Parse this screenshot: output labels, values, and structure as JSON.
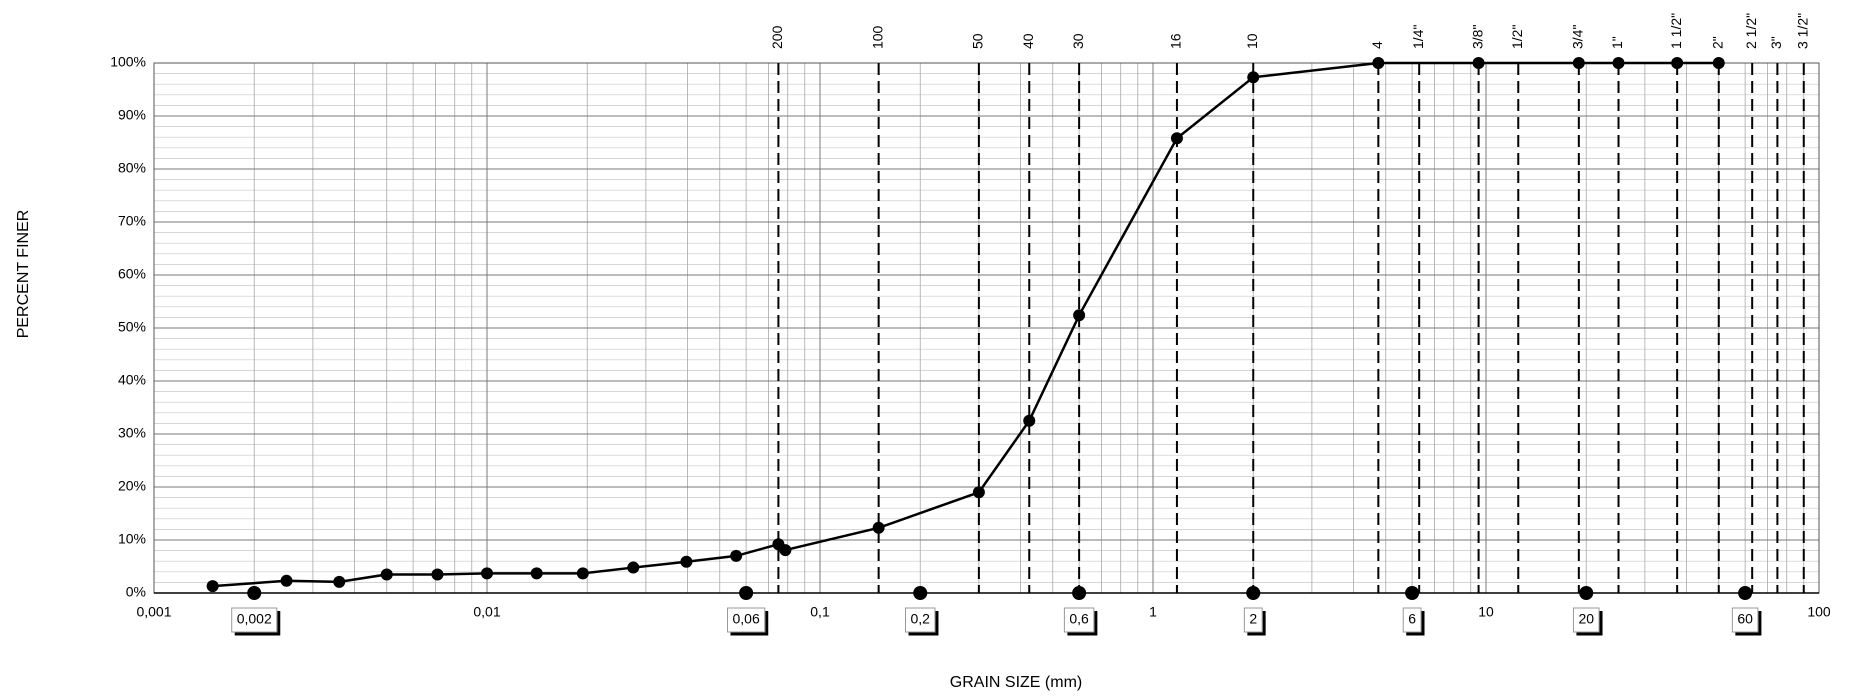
{
  "chart_data": {
    "type": "line",
    "x_label": "GRAIN SIZE (mm)",
    "y_label": "PERCENT FINER",
    "log_x": true,
    "grid": true,
    "color": "#000000",
    "xlim": [
      0.001,
      100
    ],
    "ylim": [
      0,
      100
    ],
    "xticks": [
      {
        "value": 0.001,
        "label": "0,001"
      },
      {
        "value": 0.01,
        "label": "0,01"
      },
      {
        "value": 0.1,
        "label": "0,1"
      },
      1,
      10,
      100
    ],
    "yticks": [
      {
        "value": 0,
        "label": "0%"
      },
      {
        "value": 10,
        "label": "10%"
      },
      {
        "value": 20,
        "label": "20%"
      },
      {
        "value": 30,
        "label": "30%"
      },
      {
        "value": 40,
        "label": "40%"
      },
      {
        "value": 50,
        "label": "50%"
      },
      {
        "value": 60,
        "label": "60%"
      },
      {
        "value": 70,
        "label": "70%"
      },
      {
        "value": 80,
        "label": "80%"
      },
      {
        "value": 90,
        "label": "90%"
      },
      {
        "value": 100,
        "label": "100%"
      }
    ],
    "x": [
      0.0015,
      0.0025,
      0.0036,
      0.005,
      0.0071,
      0.01,
      0.0141,
      0.0194,
      0.0275,
      0.0397,
      0.056,
      0.075,
      0.0787,
      0.15,
      0.3,
      0.425,
      0.6,
      1.18,
      2.0,
      4.75,
      9.5,
      19,
      25,
      37.5,
      50
    ],
    "values": [
      1.3,
      2.3,
      2.1,
      3.5,
      3.5,
      3.7,
      3.7,
      3.7,
      4.8,
      5.9,
      7.0,
      9.2,
      8.1,
      12.3,
      19.0,
      32.5,
      52.4,
      85.8,
      97.3,
      100,
      100,
      100,
      100,
      100,
      100
    ],
    "sieves": [
      {
        "label": "200",
        "value": 0.075
      },
      {
        "label": "100",
        "value": 0.15
      },
      {
        "label": "50",
        "value": 0.3
      },
      {
        "label": "40",
        "value": 0.425
      },
      {
        "label": "30",
        "value": 0.6
      },
      {
        "label": "16",
        "value": 1.18
      },
      {
        "label": "10",
        "value": 2.0
      },
      {
        "label": "4",
        "value": 4.75
      },
      {
        "label": "1/4\"",
        "value": 6.3
      },
      {
        "label": "3/8\"",
        "value": 9.5
      },
      {
        "label": "1/2\"",
        "value": 12.5
      },
      {
        "label": "3/4\"",
        "value": 19
      },
      {
        "label": "1\"",
        "value": 25
      },
      {
        "label": "1 1/2\"",
        "value": 37.5
      },
      {
        "label": "2\"",
        "value": 50
      },
      {
        "label": "2 1/2\"",
        "value": 63
      },
      {
        "label": "3\"",
        "value": 75
      },
      {
        "label": "3 1/2\"",
        "value": 90
      }
    ],
    "boundaries": [
      {
        "value": 0.002,
        "label": "0,002"
      },
      {
        "value": 0.06,
        "label": "0,06"
      },
      {
        "value": 0.2,
        "label": "0,2"
      },
      {
        "value": 0.6,
        "label": "0,6"
      },
      {
        "value": 2,
        "label": "2"
      },
      {
        "value": 6,
        "label": "6"
      },
      {
        "value": 20,
        "label": "20"
      },
      {
        "value": 60,
        "label": "60"
      }
    ]
  }
}
